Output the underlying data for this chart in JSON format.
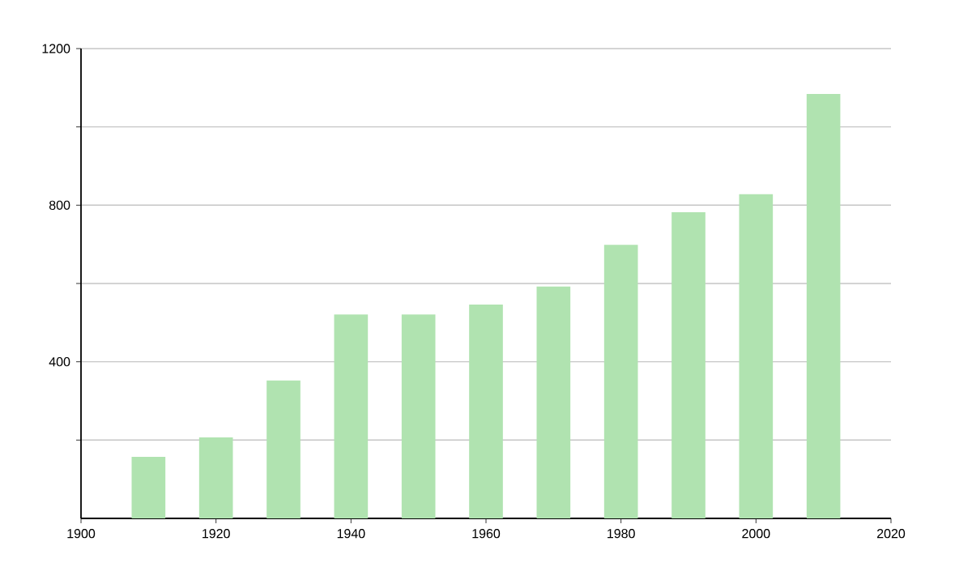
{
  "chart_data": {
    "type": "bar",
    "x": [
      1910,
      1920,
      1930,
      1940,
      1950,
      1960,
      1970,
      1980,
      1990,
      2000,
      2010
    ],
    "values": [
      157,
      207,
      352,
      521,
      521,
      546,
      592,
      699,
      782,
      828,
      1084
    ],
    "color": "#b0e3b0",
    "xlim": [
      1900,
      2020
    ],
    "xticks": [
      1900,
      1920,
      1940,
      1960,
      1980,
      2000,
      2020
    ],
    "ylim": [
      0,
      1200
    ],
    "yticks": [
      {
        "value": 200,
        "label": null
      },
      400,
      {
        "value": 600,
        "label": null
      },
      800,
      {
        "value": 1000,
        "label": null
      },
      1200
    ],
    "grid": "y"
  }
}
